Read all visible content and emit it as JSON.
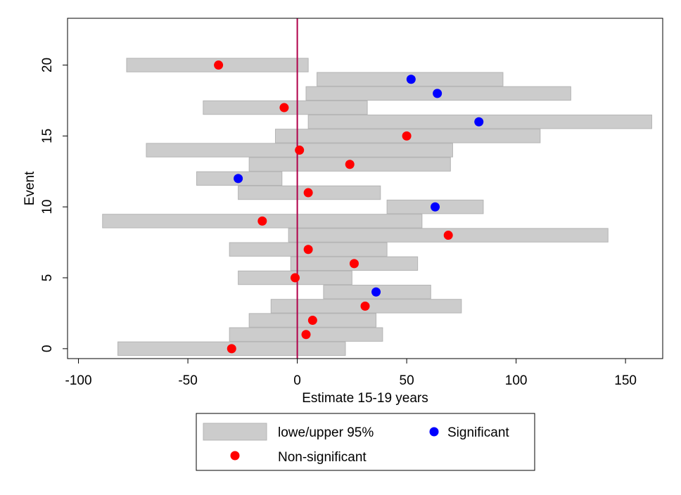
{
  "chart_data": {
    "type": "range-bar-scatter",
    "xlabel": "Estimate 15-19 years",
    "ylabel": "Event",
    "xlim": [
      -105,
      167
    ],
    "ylim": [
      -0.7,
      23.3
    ],
    "x_ticks": [
      -100,
      -50,
      0,
      50,
      100,
      150
    ],
    "x_tick_labels": [
      "-100",
      "-50",
      "0",
      "50",
      "100",
      "150"
    ],
    "y_ticks": [
      0,
      5,
      10,
      15,
      20
    ],
    "y_tick_labels": [
      "0",
      "5",
      "10",
      "15",
      "20"
    ],
    "reference_line_x": 0,
    "grid": false,
    "legend_position": "bottom",
    "colors": {
      "ci_bar": "#cccccc",
      "ci_bar_edge": "#b4b4b4",
      "significant": "#0000ff",
      "non_significant": "#ff0000",
      "reference_line": "#b0004a"
    },
    "legend": [
      {
        "label": "lowe/upper 95%",
        "kind": "ci"
      },
      {
        "label": "Significant",
        "kind": "significant"
      },
      {
        "label": "Non-significant",
        "kind": "non_significant"
      }
    ],
    "events": [
      {
        "event": 0,
        "lower": -82,
        "upper": 22,
        "estimate": -30,
        "significant": false
      },
      {
        "event": 1,
        "lower": -31,
        "upper": 39,
        "estimate": 4,
        "significant": false
      },
      {
        "event": 2,
        "lower": -22,
        "upper": 36,
        "estimate": 7,
        "significant": false
      },
      {
        "event": 3,
        "lower": -12,
        "upper": 75,
        "estimate": 31,
        "significant": false
      },
      {
        "event": 4,
        "lower": 12,
        "upper": 61,
        "estimate": 36,
        "significant": true
      },
      {
        "event": 5,
        "lower": -27,
        "upper": 25,
        "estimate": -1,
        "significant": false
      },
      {
        "event": 6,
        "lower": -3,
        "upper": 55,
        "estimate": 26,
        "significant": false
      },
      {
        "event": 7,
        "lower": -31,
        "upper": 41,
        "estimate": 5,
        "significant": false
      },
      {
        "event": 8,
        "lower": -4,
        "upper": 142,
        "estimate": 69,
        "significant": false
      },
      {
        "event": 9,
        "lower": -89,
        "upper": 57,
        "estimate": -16,
        "significant": false
      },
      {
        "event": 10,
        "lower": 41,
        "upper": 85,
        "estimate": 63,
        "significant": true
      },
      {
        "event": 11,
        "lower": -27,
        "upper": 38,
        "estimate": 5,
        "significant": false
      },
      {
        "event": 12,
        "lower": -46,
        "upper": -7,
        "estimate": -27,
        "significant": true
      },
      {
        "event": 13,
        "lower": -22,
        "upper": 70,
        "estimate": 24,
        "significant": false
      },
      {
        "event": 14,
        "lower": -69,
        "upper": 71,
        "estimate": 1,
        "significant": false
      },
      {
        "event": 15,
        "lower": -10,
        "upper": 111,
        "estimate": 50,
        "significant": false
      },
      {
        "event": 16,
        "lower": 5,
        "upper": 162,
        "estimate": 83,
        "significant": true
      },
      {
        "event": 17,
        "lower": -43,
        "upper": 32,
        "estimate": -6,
        "significant": false
      },
      {
        "event": 18,
        "lower": 4,
        "upper": 125,
        "estimate": 64,
        "significant": true
      },
      {
        "event": 19,
        "lower": 9,
        "upper": 94,
        "estimate": 52,
        "significant": true
      },
      {
        "event": 20,
        "lower": -78,
        "upper": 5,
        "estimate": -36,
        "significant": false
      }
    ]
  }
}
